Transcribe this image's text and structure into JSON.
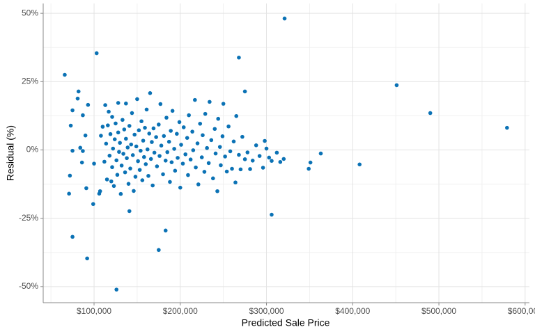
{
  "chart_data": {
    "type": "scatter",
    "x_label": "Predicted Sale Price",
    "y_label": "Residual (%)",
    "color": "#0b72b5",
    "grid": true,
    "xlim": [
      41000,
      605000
    ],
    "ylim": [
      -55.9,
      53.6
    ],
    "xticks": [
      {
        "value": 100000,
        "label": "$100,000"
      },
      {
        "value": 200000,
        "label": "$200,000"
      },
      {
        "value": 300000,
        "label": "$300,000"
      },
      {
        "value": 400000,
        "label": "$400,000"
      },
      {
        "value": 500000,
        "label": "$500,000"
      },
      {
        "value": 600000,
        "label": "$600,000"
      }
    ],
    "yticks": [
      {
        "value": -50,
        "label": "-50%"
      },
      {
        "value": -25,
        "label": "-25%"
      },
      {
        "value": 0,
        "label": "0%"
      },
      {
        "value": 25,
        "label": "25%"
      },
      {
        "value": 50,
        "label": "50%"
      }
    ],
    "minor_xticks": [
      50000,
      150000,
      250000,
      350000,
      450000,
      550000
    ],
    "minor_yticks": [
      -37.5,
      -12.5,
      12.5,
      37.5
    ],
    "x": [
      66000,
      103000,
      321000,
      268000,
      275000,
      451000,
      490000,
      579000,
      408000,
      363000,
      351000,
      349000,
      306000,
      183000,
      175000,
      126000,
      92000,
      75000,
      71000,
      99000,
      91000,
      141000,
      72000,
      82000,
      81000,
      93000,
      75000,
      87000,
      73000,
      75000,
      84000,
      87000,
      90000,
      86000,
      107000,
      106000,
      100000,
      108000,
      110000,
      112000,
      113000,
      114000,
      115000,
      116000,
      117000,
      118000,
      119000,
      120000,
      121000,
      121000,
      122000,
      123000,
      124000,
      125000,
      126000,
      127000,
      128000,
      128000,
      129000,
      130000,
      131000,
      132000,
      133000,
      134000,
      135000,
      136000,
      137000,
      137000,
      138000,
      139000,
      140000,
      141000,
      142000,
      143000,
      144000,
      145000,
      146000,
      147000,
      148000,
      149000,
      150000,
      151000,
      152000,
      153000,
      154000,
      155000,
      156000,
      157000,
      158000,
      159000,
      160000,
      161000,
      162000,
      163000,
      164000,
      165000,
      166000,
      167000,
      168000,
      169000,
      170000,
      172000,
      173000,
      175000,
      176000,
      177000,
      178000,
      180000,
      181000,
      183000,
      184000,
      185000,
      187000,
      188000,
      189000,
      190000,
      191000,
      193000,
      194000,
      196000,
      197000,
      199000,
      200000,
      201000,
      203000,
      204000,
      206000,
      208000,
      209000,
      210000,
      212000,
      214000,
      215000,
      217000,
      218000,
      220000,
      221000,
      223000,
      225000,
      226000,
      228000,
      229000,
      231000,
      233000,
      234000,
      236000,
      238000,
      240000,
      241000,
      243000,
      244000,
      246000,
      247000,
      249000,
      250000,
      252000,
      254000,
      256000,
      258000,
      260000,
      262000,
      264000,
      265000,
      268000,
      270000,
      272000,
      275000,
      278000,
      281000,
      284000,
      288000,
      292000,
      296000,
      298000,
      300000,
      303000,
      306000,
      312000,
      316000,
      320000
    ],
    "values": [
      27.5,
      35.4,
      48.1,
      33.8,
      21.4,
      23.7,
      13.5,
      8.1,
      -5.3,
      -1.3,
      -4.6,
      -6.9,
      -23.7,
      -29.5,
      -36.6,
      -51.1,
      -39.7,
      -31.8,
      -16.0,
      -19.8,
      -14.0,
      -22.4,
      -9.4,
      21.4,
      18.8,
      16.5,
      14.5,
      12.7,
      8.9,
      -0.3,
      0.8,
      -0.4,
      5.3,
      -4.6,
      -15.1,
      -16.0,
      -5.0,
      5.2,
      8.5,
      -4.3,
      16.4,
      2.3,
      -10.8,
      9.0,
      14.0,
      -2.1,
      5.8,
      -11.5,
      -6.3,
      12.1,
      0.5,
      -13.2,
      3.9,
      9.7,
      -3.8,
      -9.1,
      6.4,
      17.2,
      -0.7,
      2.6,
      -16.1,
      -5.7,
      11.0,
      -1.4,
      7.5,
      -8.2,
      4.1,
      17.0,
      -3.0,
      0.9,
      -12.4,
      8.8,
      -6.8,
      2.0,
      13.5,
      -1.9,
      -15.0,
      5.6,
      -9.8,
      1.3,
      18.6,
      -4.1,
      7.2,
      -7.3,
      -0.3,
      10.5,
      -11.1,
      3.4,
      -2.6,
      8.1,
      -5.2,
      14.8,
      0.2,
      -9.5,
      6.0,
      20.8,
      -3.3,
      2.9,
      -13.0,
      7.9,
      -1.0,
      4.7,
      -6.0,
      9.3,
      -2.2,
      16.8,
      1.6,
      -8.9,
      5.1,
      -3.9,
      11.8,
      -0.8,
      3.0,
      -11.7,
      7.0,
      -4.5,
      14.3,
      0.4,
      -7.6,
      5.9,
      -2.9,
      10.2,
      -13.8,
      1.9,
      -5.0,
      8.3,
      -1.6,
      4.4,
      -9.2,
      12.7,
      -3.5,
      6.7,
      -0.1,
      18.3,
      -6.4,
      2.4,
      -12.6,
      9.6,
      -2.7,
      5.4,
      -8.0,
      13.2,
      0.7,
      -4.8,
      17.6,
      3.6,
      -10.4,
      7.7,
      -1.3,
      -15.1,
      11.4,
      1.1,
      -5.6,
      5.0,
      16.9,
      -2.4,
      -7.9,
      8.6,
      -0.5,
      -6.9,
      3.1,
      -11.9,
      12.4,
      -1.8,
      -7.1,
      4.8,
      -3.4,
      -0.9,
      -7.0,
      -3.9,
      1.7,
      -2.2,
      -6.5,
      3.3,
      0.5,
      -2.8,
      -4.0,
      -1.0,
      -4.4,
      -3.3
    ]
  }
}
